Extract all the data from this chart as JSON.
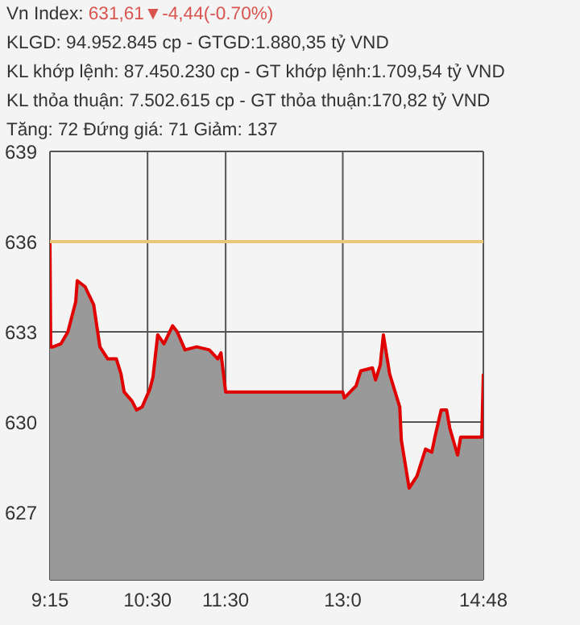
{
  "chart_data": {
    "type": "area",
    "title": "Vn Index: 631,61▼-4,44(-0.70%)",
    "annotations": [
      "KLGD: 94.952.845 cp - GTGD:1.880,35 tỷ VND",
      "KL khớp lệnh: 87.450.230 cp - GT khớp lệnh:1.709,54 tỷ VND",
      "KL thỏa thuận: 7.502.615 cp - GT thỏa thuận:170,82 tỷ VND",
      "Tăng: 72 Đứng giá: 71 Giảm: 137"
    ],
    "x": [
      9.25,
      9.26,
      9.29,
      9.39,
      9.48,
      9.58,
      9.6,
      9.7,
      9.81,
      9.89,
      9.99,
      10.1,
      10.16,
      10.2,
      10.3,
      10.36,
      10.43,
      10.53,
      10.57,
      10.63,
      10.71,
      10.82,
      10.88,
      10.98,
      11.13,
      11.29,
      11.4,
      11.44,
      11.5,
      13.0,
      13.02,
      13.17,
      13.23,
      13.38,
      13.42,
      13.48,
      13.52,
      13.6,
      13.73,
      13.75,
      13.85,
      13.95,
      14.06,
      14.14,
      14.18,
      14.26,
      14.33,
      14.37,
      14.47,
      14.51,
      14.78,
      14.8
    ],
    "series": [
      {
        "color": "#e00000",
        "values": [
          636.0,
          632.5,
          632.5,
          632.6,
          633.0,
          634.0,
          634.7,
          634.5,
          633.9,
          632.5,
          632.1,
          632.1,
          631.6,
          631.0,
          630.7,
          630.4,
          630.5,
          631.1,
          631.5,
          632.9,
          632.6,
          633.2,
          633.0,
          632.4,
          632.5,
          632.4,
          632.1,
          632.3,
          631.0,
          631.0,
          630.8,
          631.2,
          631.7,
          631.8,
          631.4,
          631.9,
          632.9,
          631.6,
          630.5,
          629.4,
          627.8,
          628.2,
          629.1,
          629.0,
          629.5,
          630.4,
          630.4,
          629.8,
          628.9,
          629.5,
          629.5,
          631.6
        ]
      }
    ],
    "xlim": [
      9.25,
      14.8
    ],
    "xticks": [
      {
        "value": 9.25,
        "label": "9:15"
      },
      {
        "value": 10.5,
        "label": "10:30"
      },
      {
        "value": 11.5,
        "label": "11:30"
      },
      {
        "value": 13,
        "label": "13:0"
      },
      {
        "value": 14.8,
        "label": "14:48"
      }
    ],
    "ylim": [
      624.75,
      639
    ],
    "yticks": [
      627,
      630,
      633,
      636,
      639
    ],
    "ref_lines": [
      {
        "axis": "y",
        "value": 636,
        "color": "#e8c878"
      }
    ],
    "grid": true
  }
}
